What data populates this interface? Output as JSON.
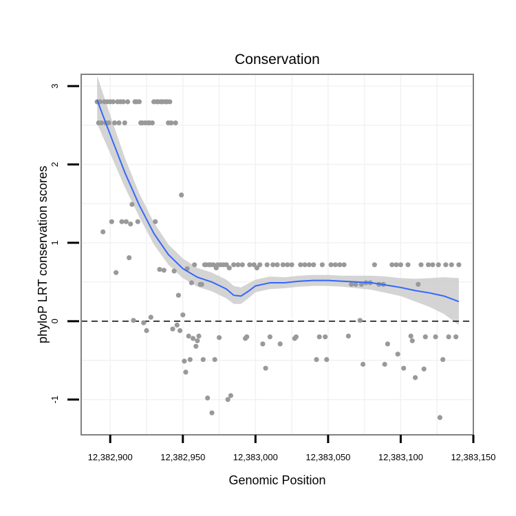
{
  "chart_data": {
    "type": "scatter",
    "title": "Conservation",
    "xlabel": "Genomic Position",
    "ylabel": "phyloP LRT conservation scores",
    "xlim": [
      12382880,
      12383150
    ],
    "ylim": [
      -1.45,
      3.15
    ],
    "x_ticks": [
      12382900,
      12382950,
      12383000,
      12383050,
      12383100,
      12383150
    ],
    "x_tick_labels": [
      "12,382,900",
      "12,382,950",
      "12,383,000",
      "12,383,050",
      "12,383,100",
      "12,383,150"
    ],
    "y_ticks": [
      -1,
      0,
      1,
      2,
      3
    ],
    "y_tick_labels": [
      "-1",
      "0",
      "1",
      "2",
      "3"
    ],
    "grid": true,
    "colors": {
      "points": "#999999",
      "smooth_line": "#3366ff",
      "ribbon": "#cccccc",
      "panel_border": "#808080",
      "grid": "#f2f2f2",
      "reference_line": "#000000"
    },
    "reference_line": {
      "y": 0,
      "style": "dashed"
    },
    "series": [
      {
        "name": "scores",
        "kind": "points",
        "points": [
          [
            12382891,
            2.8
          ],
          [
            12382892,
            2.53
          ],
          [
            12382893,
            2.8
          ],
          [
            12382894,
            2.53
          ],
          [
            12382895,
            1.14
          ],
          [
            12382896,
            2.8
          ],
          [
            12382897,
            2.53
          ],
          [
            12382898,
            2.8
          ],
          [
            12382899,
            2.53
          ],
          [
            12382900,
            2.8
          ],
          [
            12382901,
            1.27
          ],
          [
            12382902,
            2.8
          ],
          [
            12382903,
            2.53
          ],
          [
            12382904,
            0.62
          ],
          [
            12382905,
            2.8
          ],
          [
            12382906,
            2.53
          ],
          [
            12382907,
            2.8
          ],
          [
            12382908,
            1.27
          ],
          [
            12382909,
            2.8
          ],
          [
            12382910,
            2.53
          ],
          [
            12382911,
            1.27
          ],
          [
            12382912,
            2.8
          ],
          [
            12382913,
            0.81
          ],
          [
            12382914,
            1.24
          ],
          [
            12382915,
            1.49
          ],
          [
            12382916,
            0.01
          ],
          [
            12382917,
            2.8
          ],
          [
            12382918,
            2.8
          ],
          [
            12382919,
            1.27
          ],
          [
            12382920,
            2.8
          ],
          [
            12382921,
            2.53
          ],
          [
            12382922,
            2.53
          ],
          [
            12382923,
            -0.02
          ],
          [
            12382924,
            2.53
          ],
          [
            12382925,
            -0.12
          ],
          [
            12382926,
            2.53
          ],
          [
            12382927,
            2.53
          ],
          [
            12382928,
            0.05
          ],
          [
            12382929,
            2.53
          ],
          [
            12382930,
            2.8
          ],
          [
            12382931,
            1.27
          ],
          [
            12382932,
            2.8
          ],
          [
            12382933,
            2.8
          ],
          [
            12382934,
            0.66
          ],
          [
            12382935,
            2.8
          ],
          [
            12382936,
            2.8
          ],
          [
            12382937,
            0.65
          ],
          [
            12382938,
            2.8
          ],
          [
            12382939,
            2.8
          ],
          [
            12382940,
            2.53
          ],
          [
            12382941,
            2.8
          ],
          [
            12382942,
            2.53
          ],
          [
            12382943,
            -0.1
          ],
          [
            12382944,
            0.64
          ],
          [
            12382945,
            2.53
          ],
          [
            12382946,
            -0.05
          ],
          [
            12382947,
            0.33
          ],
          [
            12382948,
            -0.12
          ],
          [
            12382949,
            1.61
          ],
          [
            12382950,
            0.08
          ],
          [
            12382951,
            -0.51
          ],
          [
            12382952,
            -0.65
          ],
          [
            12382953,
            0.67
          ],
          [
            12382954,
            -0.19
          ],
          [
            12382955,
            -0.49
          ],
          [
            12382956,
            0.49
          ],
          [
            12382957,
            -0.22
          ],
          [
            12382958,
            0.72
          ],
          [
            12382959,
            -0.32
          ],
          [
            12382960,
            -0.25
          ],
          [
            12382961,
            -0.19
          ],
          [
            12382962,
            0.47
          ],
          [
            12382963,
            0.47
          ],
          [
            12382964,
            -0.49
          ],
          [
            12382965,
            0.72
          ],
          [
            12382966,
            0.72
          ],
          [
            12382967,
            -0.98
          ],
          [
            12382968,
            0.72
          ],
          [
            12382969,
            0.72
          ],
          [
            12382970,
            -1.17
          ],
          [
            12382971,
            0.72
          ],
          [
            12382972,
            -0.49
          ],
          [
            12382973,
            0.68
          ],
          [
            12382974,
            0.72
          ],
          [
            12382975,
            -0.21
          ],
          [
            12382976,
            0.72
          ],
          [
            12382978,
            0.72
          ],
          [
            12382980,
            0.72
          ],
          [
            12382981,
            -1
          ],
          [
            12382982,
            0.68
          ],
          [
            12382983,
            -0.95
          ],
          [
            12382985,
            0.72
          ],
          [
            12382988,
            0.72
          ],
          [
            12382991,
            0.72
          ],
          [
            12382993,
            -0.22
          ],
          [
            12382994,
            -0.2
          ],
          [
            12382996,
            0.72
          ],
          [
            12382999,
            0.72
          ],
          [
            12383001,
            0.68
          ],
          [
            12383003,
            0.72
          ],
          [
            12383005,
            -0.29
          ],
          [
            12383007,
            -0.6
          ],
          [
            12383008,
            0.72
          ],
          [
            12383010,
            -0.2
          ],
          [
            12383012,
            0.72
          ],
          [
            12383015,
            0.72
          ],
          [
            12383017,
            -0.29
          ],
          [
            12383019,
            0.72
          ],
          [
            12383022,
            0.72
          ],
          [
            12383025,
            0.72
          ],
          [
            12383027,
            -0.22
          ],
          [
            12383028,
            -0.2
          ],
          [
            12383031,
            0.72
          ],
          [
            12383034,
            0.72
          ],
          [
            12383037,
            0.72
          ],
          [
            12383040,
            0.72
          ],
          [
            12383042,
            -0.49
          ],
          [
            12383044,
            -0.2
          ],
          [
            12383046,
            0.72
          ],
          [
            12383048,
            -0.2
          ],
          [
            12383049,
            -0.49
          ],
          [
            12383052,
            0.72
          ],
          [
            12383055,
            0.72
          ],
          [
            12383058,
            0.72
          ],
          [
            12383061,
            0.72
          ],
          [
            12383064,
            -0.19
          ],
          [
            12383066,
            0.47
          ],
          [
            12383069,
            0.47
          ],
          [
            12383072,
            0.01
          ],
          [
            12383073,
            0.47
          ],
          [
            12383074,
            -0.55
          ],
          [
            12383076,
            0.49
          ],
          [
            12383079,
            0.49
          ],
          [
            12383082,
            0.72
          ],
          [
            12383085,
            0.47
          ],
          [
            12383088,
            0.47
          ],
          [
            12383089,
            -0.55
          ],
          [
            12383091,
            -0.29
          ],
          [
            12383094,
            0.72
          ],
          [
            12383097,
            0.72
          ],
          [
            12383098,
            -0.42
          ],
          [
            12383100,
            0.72
          ],
          [
            12383102,
            -0.6
          ],
          [
            12383105,
            0.72
          ],
          [
            12383107,
            -0.19
          ],
          [
            12383108,
            -0.25
          ],
          [
            12383110,
            -0.72
          ],
          [
            12383112,
            0.47
          ],
          [
            12383114,
            0.72
          ],
          [
            12383116,
            -0.61
          ],
          [
            12383117,
            -0.2
          ],
          [
            12383119,
            0.72
          ],
          [
            12383122,
            0.72
          ],
          [
            12383124,
            -0.2
          ],
          [
            12383126,
            0.72
          ],
          [
            12383127,
            -1.23
          ],
          [
            12383129,
            -0.49
          ],
          [
            12383131,
            0.72
          ],
          [
            12383133,
            -0.2
          ],
          [
            12383135,
            0.72
          ],
          [
            12383138,
            -0.2
          ],
          [
            12383140,
            0.72
          ]
        ]
      },
      {
        "name": "loess smooth",
        "kind": "line",
        "points": [
          [
            12382891,
            2.82
          ],
          [
            12382900,
            2.38
          ],
          [
            12382910,
            1.9
          ],
          [
            12382920,
            1.48
          ],
          [
            12382930,
            1.12
          ],
          [
            12382940,
            0.85
          ],
          [
            12382950,
            0.67
          ],
          [
            12382960,
            0.56
          ],
          [
            12382970,
            0.5
          ],
          [
            12382980,
            0.41
          ],
          [
            12382985,
            0.33
          ],
          [
            12382990,
            0.32
          ],
          [
            12382995,
            0.38
          ],
          [
            12383000,
            0.45
          ],
          [
            12383010,
            0.49
          ],
          [
            12383020,
            0.49
          ],
          [
            12383030,
            0.51
          ],
          [
            12383040,
            0.52
          ],
          [
            12383050,
            0.52
          ],
          [
            12383060,
            0.51
          ],
          [
            12383070,
            0.5
          ],
          [
            12383080,
            0.49
          ],
          [
            12383090,
            0.46
          ],
          [
            12383100,
            0.43
          ],
          [
            12383110,
            0.39
          ],
          [
            12383120,
            0.36
          ],
          [
            12383130,
            0.32
          ],
          [
            12383140,
            0.25
          ]
        ]
      },
      {
        "name": "confidence band",
        "kind": "ribbon",
        "points": [
          [
            12382891,
            2.52,
            3.13
          ],
          [
            12382900,
            2.14,
            2.63
          ],
          [
            12382910,
            1.71,
            2.09
          ],
          [
            12382920,
            1.33,
            1.63
          ],
          [
            12382930,
            0.98,
            1.26
          ],
          [
            12382940,
            0.72,
            0.98
          ],
          [
            12382950,
            0.55,
            0.8
          ],
          [
            12382960,
            0.44,
            0.68
          ],
          [
            12382970,
            0.38,
            0.62
          ],
          [
            12382980,
            0.29,
            0.53
          ],
          [
            12382985,
            0.22,
            0.45
          ],
          [
            12382990,
            0.22,
            0.43
          ],
          [
            12382995,
            0.29,
            0.48
          ],
          [
            12383000,
            0.37,
            0.53
          ],
          [
            12383010,
            0.41,
            0.57
          ],
          [
            12383020,
            0.42,
            0.56
          ],
          [
            12383030,
            0.44,
            0.58
          ],
          [
            12383040,
            0.45,
            0.59
          ],
          [
            12383050,
            0.45,
            0.59
          ],
          [
            12383060,
            0.44,
            0.58
          ],
          [
            12383070,
            0.42,
            0.58
          ],
          [
            12383080,
            0.4,
            0.58
          ],
          [
            12383090,
            0.36,
            0.57
          ],
          [
            12383100,
            0.32,
            0.55
          ],
          [
            12383110,
            0.25,
            0.54
          ],
          [
            12383120,
            0.18,
            0.55
          ],
          [
            12383130,
            0.09,
            0.56
          ],
          [
            12383140,
            -0.05,
            0.55
          ]
        ]
      }
    ]
  }
}
